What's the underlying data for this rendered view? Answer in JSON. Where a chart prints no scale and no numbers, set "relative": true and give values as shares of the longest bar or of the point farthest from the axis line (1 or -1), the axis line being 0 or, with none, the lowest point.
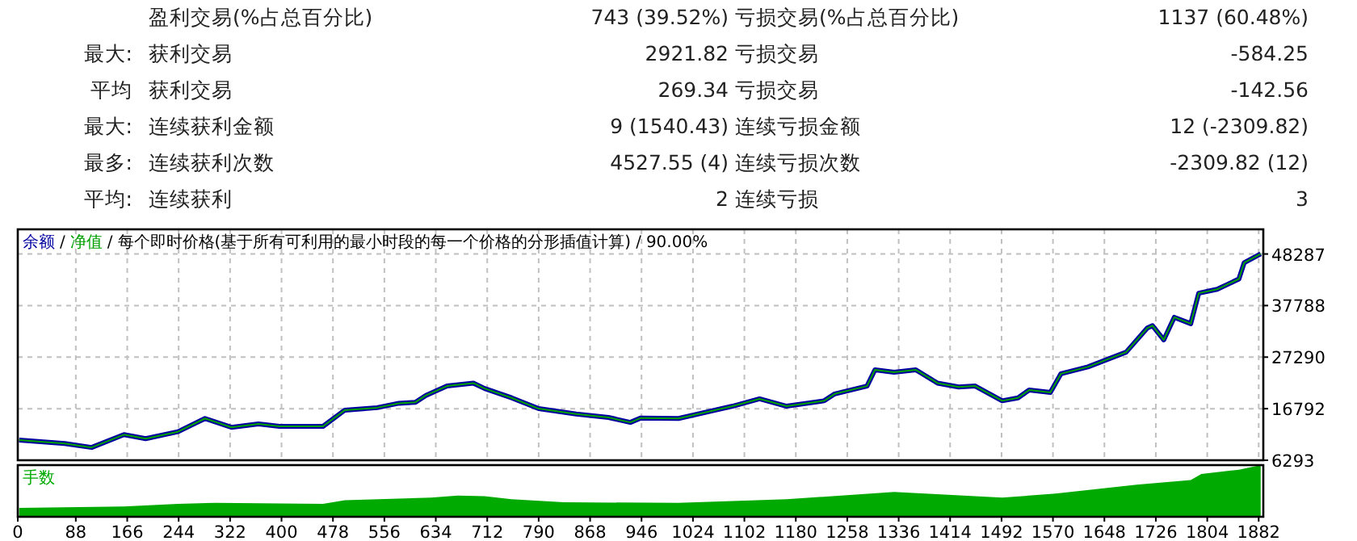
{
  "chart_data": [
    {
      "type": "other",
      "cell_labels": [
        [
          null,
          "盈利交易(%占总百分比)",
          "743 (39.52%)",
          "亏损交易(%占总百分比)",
          "1137 (60.48%)"
        ],
        [
          "最大:",
          "获利交易",
          "2921.82",
          "亏损交易",
          "-584.25"
        ],
        [
          "平均",
          "获利交易",
          "269.34",
          "亏损交易",
          "-142.56"
        ],
        [
          "最大:",
          "连续获利金额",
          "9 (1540.43)",
          "连续亏损金额",
          "12 (-2309.82)"
        ],
        [
          "最多:",
          "连续获利次数",
          "4527.55 (4)",
          "连续亏损次数",
          "-2309.82 (12)"
        ],
        [
          "平均:",
          "连续获利",
          "2",
          "连续亏损",
          "3"
        ]
      ]
    },
    {
      "type": "line",
      "legend": "top left",
      "grid": true,
      "tick_labels": "y",
      "xlim": [
        0,
        1889
      ],
      "ylim": [
        6293,
        53310
      ],
      "xticks": [
        0,
        88,
        166,
        244,
        322,
        400,
        478,
        556,
        634,
        712,
        790,
        868,
        946,
        1024,
        1102,
        1180,
        1258,
        1336,
        1414,
        1492,
        1570,
        1648,
        1726,
        1804,
        1882
      ],
      "yticks": [
        6293,
        16792,
        27290,
        37788,
        48287
      ],
      "annotations": [
        "/",
        "/",
        "每个即时价格(基于所有可利用的最小时段的每一个价格的分形插值计算)",
        "/",
        "90.00%"
      ],
      "x": [
        2,
        71,
        112,
        161,
        194,
        243,
        284,
        324,
        365,
        397,
        463,
        496,
        545,
        578,
        603,
        619,
        651,
        691,
        708,
        749,
        790,
        847,
        896,
        929,
        945,
        1002,
        1084,
        1125,
        1166,
        1223,
        1239,
        1288,
        1300,
        1329,
        1362,
        1395,
        1427,
        1452,
        1493,
        1517,
        1534,
        1566,
        1582,
        1623,
        1681,
        1713,
        1721,
        1738,
        1754,
        1779,
        1791,
        1819,
        1852,
        1860,
        1885
      ],
      "series": [
        {
          "name": "余额",
          "color": "#0000a0",
          "values": [
            10400,
            9700,
            8900,
            11500,
            10700,
            12100,
            14800,
            13000,
            13700,
            13200,
            13200,
            16500,
            17000,
            17900,
            18100,
            19500,
            21400,
            22000,
            20900,
            19000,
            16800,
            15700,
            15000,
            14000,
            14900,
            14800,
            17300,
            18800,
            17300,
            18400,
            19800,
            21400,
            24700,
            24200,
            24700,
            22000,
            21200,
            21400,
            18400,
            19000,
            20600,
            20100,
            23900,
            25300,
            28300,
            33200,
            33700,
            30800,
            35400,
            34100,
            40300,
            41100,
            43200,
            46500,
            48300
          ]
        },
        {
          "name": "净值",
          "color": "#00a000",
          "values": [
            10400,
            9700,
            8900,
            11500,
            10700,
            12100,
            14800,
            13000,
            13700,
            13200,
            13200,
            16500,
            17000,
            17900,
            18100,
            19500,
            21400,
            22000,
            20900,
            19000,
            16800,
            15700,
            15000,
            14000,
            14900,
            14800,
            17300,
            18800,
            17300,
            18400,
            19800,
            21400,
            24700,
            24200,
            24700,
            22000,
            21200,
            21400,
            18400,
            19000,
            20600,
            20100,
            23900,
            25300,
            28300,
            33200,
            33700,
            30800,
            35400,
            34100,
            40300,
            41100,
            43200,
            46500,
            48300
          ]
        }
      ]
    },
    {
      "type": "area",
      "relative": true,
      "legend": "top left",
      "tick_labels": "x",
      "xlim": [
        0,
        1889
      ],
      "xticks": [
        0,
        88,
        166,
        244,
        322,
        400,
        478,
        556,
        634,
        712,
        790,
        868,
        946,
        1024,
        1102,
        1180,
        1258,
        1336,
        1414,
        1492,
        1570,
        1648,
        1726,
        1804,
        1882
      ],
      "x": [
        2,
        161,
        243,
        300,
        463,
        496,
        627,
        667,
        708,
        749,
        828,
        1002,
        1166,
        1329,
        1493,
        1574,
        1697,
        1779,
        1795,
        1852,
        1885
      ],
      "series": [
        {
          "name": "手数",
          "color": "#00aa00",
          "values": [
            0.17,
            0.2,
            0.25,
            0.27,
            0.25,
            0.32,
            0.37,
            0.41,
            0.4,
            0.34,
            0.28,
            0.27,
            0.34,
            0.48,
            0.37,
            0.45,
            0.62,
            0.71,
            0.83,
            0.91,
            1
          ]
        }
      ]
    }
  ]
}
